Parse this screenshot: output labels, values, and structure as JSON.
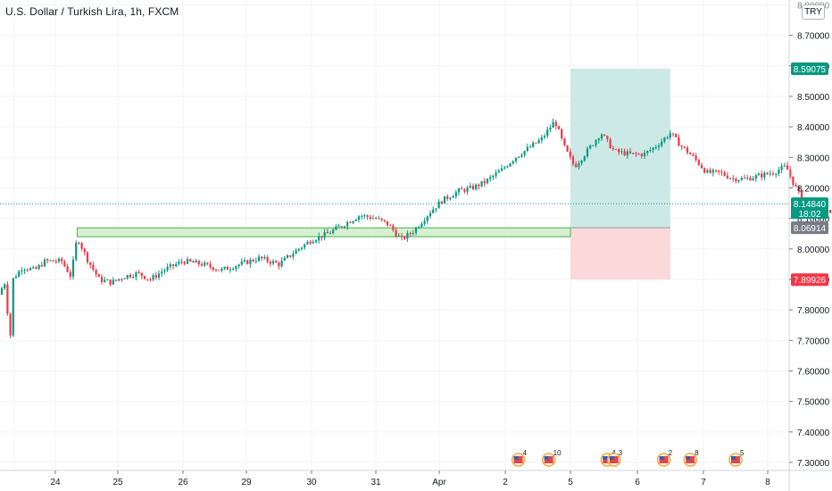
{
  "header": {
    "symbol_title": "U.S. Dollar / Turkish Lira, 1h, FXCM",
    "currency_badge": "TRY"
  },
  "chart_data": {
    "type": "candlestick",
    "title": "U.S. Dollar / Turkish Lira, 1h, FXCM",
    "y_range": [
      7.25,
      8.88
    ],
    "y_ticks": [
      "8.70000",
      "8.60000",
      "8.50000",
      "8.40000",
      "8.30000",
      "8.20000",
      "8.10000",
      "8.00000",
      "7.90000",
      "7.80000",
      "7.70000",
      "7.60000",
      "7.50000",
      "7.40000",
      "7.30000"
    ],
    "top_tick_partial": "8.80000",
    "x_ticks": [
      "24",
      "25",
      "26",
      "29",
      "30",
      "31",
      "Apr",
      "2",
      "5",
      "6",
      "7",
      "8"
    ],
    "price_path": [
      [
        "22",
        7.85
      ],
      [
        "22.3",
        7.9
      ],
      [
        "22.6",
        7.76
      ],
      [
        "22.75",
        7.71
      ],
      [
        "22.9",
        7.9
      ],
      [
        "23.2",
        7.94
      ],
      [
        "23.5",
        7.93
      ],
      [
        "23.75",
        7.96
      ],
      [
        "24.1",
        7.96
      ],
      [
        "24.25",
        7.91
      ],
      [
        "24.35",
        8.04
      ],
      [
        "24.5",
        7.97
      ],
      [
        "24.7",
        7.9
      ],
      [
        "24.9",
        7.89
      ],
      [
        "25.1",
        7.91
      ],
      [
        "25.3",
        7.92
      ],
      [
        "25.5",
        7.9
      ],
      [
        "25.7",
        7.93
      ],
      [
        "26.0",
        7.96
      ],
      [
        "26.3",
        7.95
      ],
      [
        "26.6",
        7.93
      ],
      [
        "26.9",
        7.95
      ],
      [
        "27.2",
        7.97
      ],
      [
        "27.5",
        7.95
      ],
      [
        "27.8",
        8.0
      ],
      [
        "28.0",
        8.03
      ],
      [
        "28.25",
        8.05
      ],
      [
        "28.5",
        8.08
      ],
      [
        "28.75",
        8.11
      ],
      [
        "29.0",
        8.1
      ],
      [
        "29.2",
        8.08
      ],
      [
        "29.4",
        8.03
      ],
      [
        "29.6",
        8.06
      ],
      [
        "29.85",
        8.12
      ],
      [
        "30.05",
        8.16
      ],
      [
        "30.3",
        8.19
      ],
      [
        "30.5",
        8.2
      ],
      [
        "30.7",
        8.22
      ],
      [
        "30.95",
        8.26
      ],
      [
        "31.15",
        8.3
      ],
      [
        "31.35",
        8.33
      ],
      [
        "31.55",
        8.36
      ],
      [
        "31.75",
        8.42
      ],
      [
        "31.9",
        8.33
      ],
      [
        "32.05",
        8.27
      ],
      [
        "32.2",
        8.31
      ],
      [
        "32.45",
        8.38
      ],
      [
        "32.65",
        8.32
      ],
      [
        "32.9",
        8.31
      ],
      [
        "33.1",
        8.31
      ],
      [
        "33.3",
        8.34
      ],
      [
        "33.5",
        8.38
      ],
      [
        "33.65",
        8.34
      ],
      [
        "33.85",
        8.3
      ],
      [
        "34.05",
        8.25
      ],
      [
        "34.25",
        8.25
      ],
      [
        "34.45",
        8.23
      ],
      [
        "34.65",
        8.23
      ],
      [
        "34.85",
        8.24
      ],
      [
        "35.05",
        8.25
      ],
      [
        "35.25",
        8.27
      ],
      [
        "35.35",
        8.22
      ],
      [
        "35.5",
        8.16
      ],
      [
        "35.65",
        8.14
      ],
      [
        "35.8",
        8.12
      ],
      [
        "35.9",
        8.12
      ],
      [
        "36.0",
        8.15
      ]
    ],
    "demand_zone": {
      "from": "24.35",
      "to": "5",
      "low": 8.04,
      "high": 8.069
    },
    "long_position": {
      "from": "5",
      "to": "6.5",
      "entry": 8.06914,
      "target": 8.59075,
      "stop": 7.89926
    },
    "price_labels": [
      {
        "value": 8.59075,
        "text": "8.59075",
        "color": "#089981"
      },
      {
        "value": 8.1484,
        "text": "8.14840",
        "sub": "18:02",
        "color": "#089981"
      },
      {
        "value": 8.06914,
        "text": "8.06914",
        "color": "#787b86"
      },
      {
        "value": 7.89926,
        "text": "7.89926",
        "color": "#f23645"
      }
    ],
    "current_price": 8.1484,
    "countdown": "18:02",
    "grid": true,
    "event_markers": [
      {
        "x": "2.6",
        "count": "4"
      },
      {
        "x": "4.0",
        "count": "10"
      },
      {
        "x": "5.55",
        "count": "4"
      },
      {
        "x": "5.65",
        "count": "3"
      },
      {
        "x": "6.4",
        "count": "2"
      },
      {
        "x": "6.8",
        "count": "8"
      },
      {
        "x": "7.5",
        "count": "5"
      }
    ],
    "colors": {
      "up": "#089981",
      "down": "#f23645",
      "target_zone": "#cde9e6",
      "stop_zone": "#fbd9db",
      "demand_zone": "#d6f0d2",
      "demand_border": "#4caf50",
      "grid": "#f0f3fa"
    }
  }
}
